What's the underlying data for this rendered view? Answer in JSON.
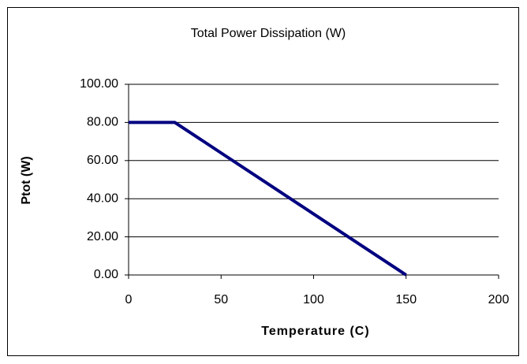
{
  "chart_data": {
    "type": "line",
    "title": "Total Power Dissipation (W)",
    "xlabel": "Temperature (C)",
    "ylabel": "Ptot (W)",
    "x": [
      0,
      25,
      50,
      75,
      100,
      125,
      150
    ],
    "series": [
      {
        "name": "Ptot",
        "color": "#000080",
        "values": [
          80,
          80,
          64,
          48,
          32,
          16,
          0
        ]
      }
    ],
    "xlim": [
      0,
      200
    ],
    "xticks": [
      0,
      50,
      100,
      150,
      200
    ],
    "ylim": [
      0,
      100
    ],
    "yticks": [
      {
        "value": 0,
        "label": "0.00"
      },
      {
        "value": 20,
        "label": "20.00"
      },
      {
        "value": 40,
        "label": "40.00"
      },
      {
        "value": 60,
        "label": "60.00"
      },
      {
        "value": 80,
        "label": "80.00"
      },
      {
        "value": 100,
        "label": "100.00"
      }
    ],
    "grid": true
  }
}
